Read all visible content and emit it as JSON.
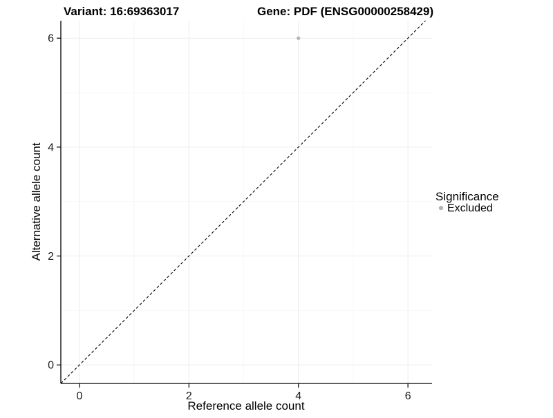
{
  "page": {
    "background": "#ffffff"
  },
  "chart_data": {
    "type": "scatter",
    "title_left": "Variant: 16:69363017",
    "title_right": "Gene: PDF (ENSG00000258429)",
    "xlabel": "Reference allele count",
    "ylabel": "Alternative allele count",
    "x_ticks": [
      0,
      2,
      4,
      6
    ],
    "y_ticks": [
      0,
      2,
      4,
      6
    ],
    "x_minor": [
      1,
      3,
      5
    ],
    "y_minor": [
      1,
      3,
      5
    ],
    "xlim": [
      -0.34,
      6.44
    ],
    "ylim": [
      -0.34,
      6.32
    ],
    "points": [
      {
        "x": 4,
        "y": 6,
        "series": "Excluded"
      }
    ],
    "abline": {
      "slope": 1,
      "intercept": 0,
      "style": "dashed"
    },
    "grid": true,
    "legend": {
      "position": "right",
      "title": "Significance",
      "items": [
        {
          "label": "Excluded",
          "color": "#b5b5b5"
        }
      ]
    },
    "colors": {
      "point": "#b5b5b5",
      "grid_major": "#ececec",
      "grid_minor": "#f6f6f6",
      "axis": "#000000",
      "abline": "#000000"
    }
  }
}
